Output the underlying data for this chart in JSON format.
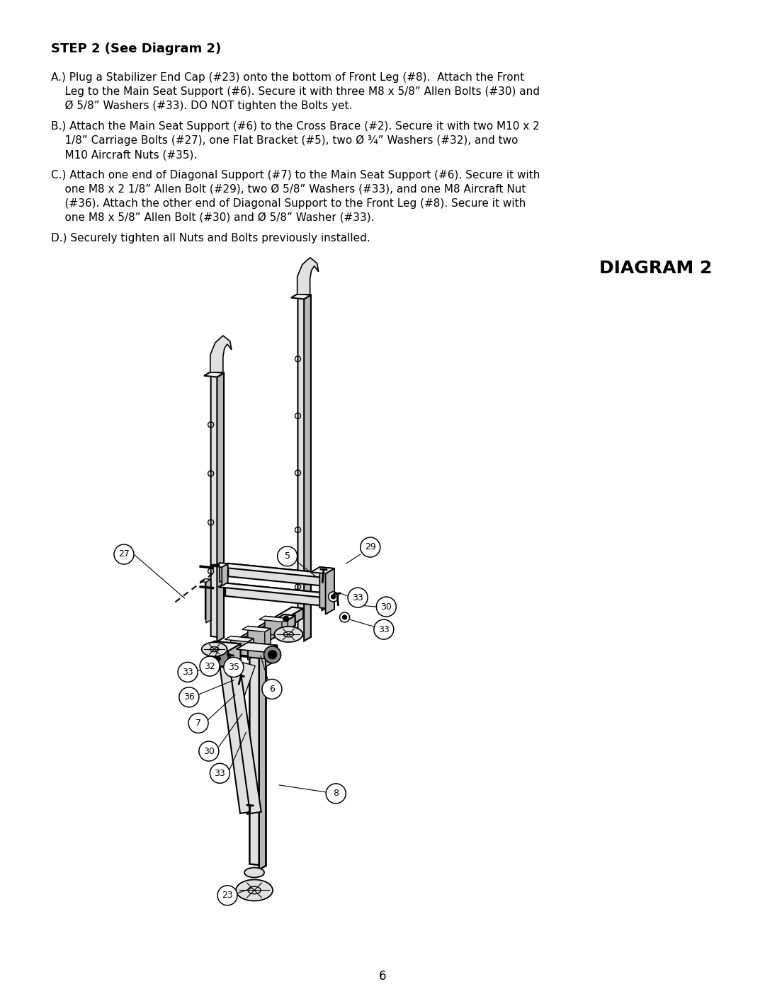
{
  "page_number": "6",
  "background_color": "#ffffff",
  "text_color": "#000000",
  "title": "STEP 2 (See Diagram 2)",
  "diagram_title": "DIAGRAM 2",
  "font_size_title": 13,
  "font_size_body": 11,
  "font_size_diagram_title": 18
}
